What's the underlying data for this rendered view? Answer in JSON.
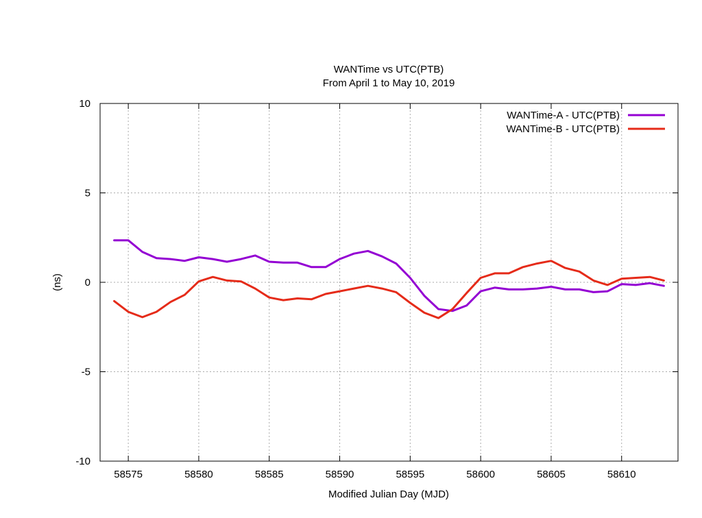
{
  "chart_data": {
    "type": "line",
    "title": "WANTime vs UTC(PTB)",
    "subtitle": "From April 1 to May 10, 2019",
    "xlabel": "Modified Julian Day (MJD)",
    "ylabel": "(ns)",
    "xlim": [
      58573,
      58614
    ],
    "ylim": [
      -10,
      10
    ],
    "xticks": [
      58575,
      58580,
      58585,
      58590,
      58595,
      58600,
      58605,
      58610
    ],
    "yticks": [
      10,
      5,
      0,
      -5,
      -10
    ],
    "grid": true,
    "legend_position": "top-right",
    "x": [
      58574,
      58575,
      58576,
      58577,
      58578,
      58579,
      58580,
      58581,
      58582,
      58583,
      58584,
      58585,
      58586,
      58587,
      58588,
      58589,
      58590,
      58591,
      58592,
      58593,
      58594,
      58595,
      58596,
      58597,
      58598,
      58599,
      58600,
      58601,
      58602,
      58603,
      58604,
      58605,
      58606,
      58607,
      58608,
      58609,
      58610,
      58611,
      58612,
      58613
    ],
    "series": [
      {
        "name": "WANTime-A - UTC(PTB)",
        "color": "#9400d3",
        "values": [
          2.35,
          2.35,
          1.7,
          1.35,
          1.3,
          1.2,
          1.4,
          1.3,
          1.15,
          1.3,
          1.5,
          1.15,
          1.1,
          1.1,
          0.85,
          0.85,
          1.3,
          1.6,
          1.75,
          1.45,
          1.05,
          0.25,
          -0.75,
          -1.5,
          -1.6,
          -1.3,
          -0.5,
          -0.3,
          -0.4,
          -0.4,
          -0.35,
          -0.25,
          -0.4,
          -0.4,
          -0.55,
          -0.5,
          -0.1,
          -0.15,
          -0.05,
          -0.2
        ]
      },
      {
        "name": "WANTime-B - UTC(PTB)",
        "color": "#e52b19",
        "values": [
          -1.05,
          -1.65,
          -1.95,
          -1.65,
          -1.1,
          -0.7,
          0.05,
          0.3,
          0.1,
          0.05,
          -0.35,
          -0.85,
          -1.0,
          -0.9,
          -0.95,
          -0.65,
          -0.5,
          -0.35,
          -0.2,
          -0.35,
          -0.55,
          -1.15,
          -1.7,
          -2.0,
          -1.5,
          -0.6,
          0.25,
          0.5,
          0.5,
          0.85,
          1.05,
          1.2,
          0.8,
          0.6,
          0.1,
          -0.15,
          0.2,
          0.25,
          0.3,
          0.1
        ]
      }
    ]
  }
}
